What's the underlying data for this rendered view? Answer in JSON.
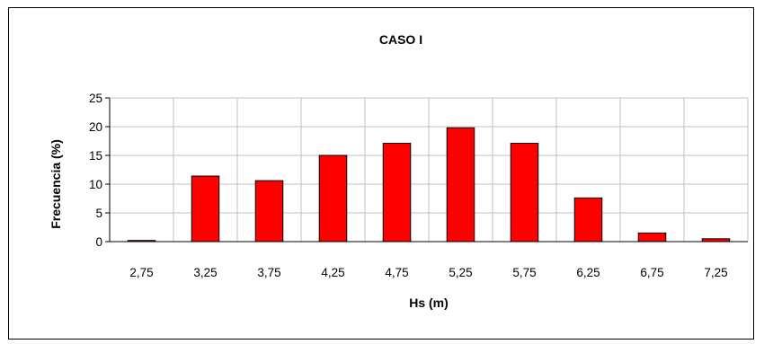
{
  "chart_data": {
    "type": "bar",
    "title": "CASO I",
    "xlabel": "Hs (m)",
    "ylabel": "Frecuencia (%)",
    "categories": [
      "2,75",
      "3,25",
      "3,75",
      "4,25",
      "4,75",
      "5,25",
      "5,75",
      "6,25",
      "6,75",
      "7,25"
    ],
    "values": [
      0.2,
      11.4,
      10.6,
      15.0,
      17.1,
      19.8,
      17.1,
      7.6,
      1.5,
      0.5
    ],
    "ylim": [
      0,
      25
    ],
    "yticks": [
      "0",
      "5",
      "10",
      "15",
      "20",
      "25"
    ],
    "grid": true,
    "legend": "none",
    "colors": {
      "bar_fill": "#ff0000",
      "bar_stroke": "#000000",
      "grid": "#c0c0c0"
    }
  }
}
